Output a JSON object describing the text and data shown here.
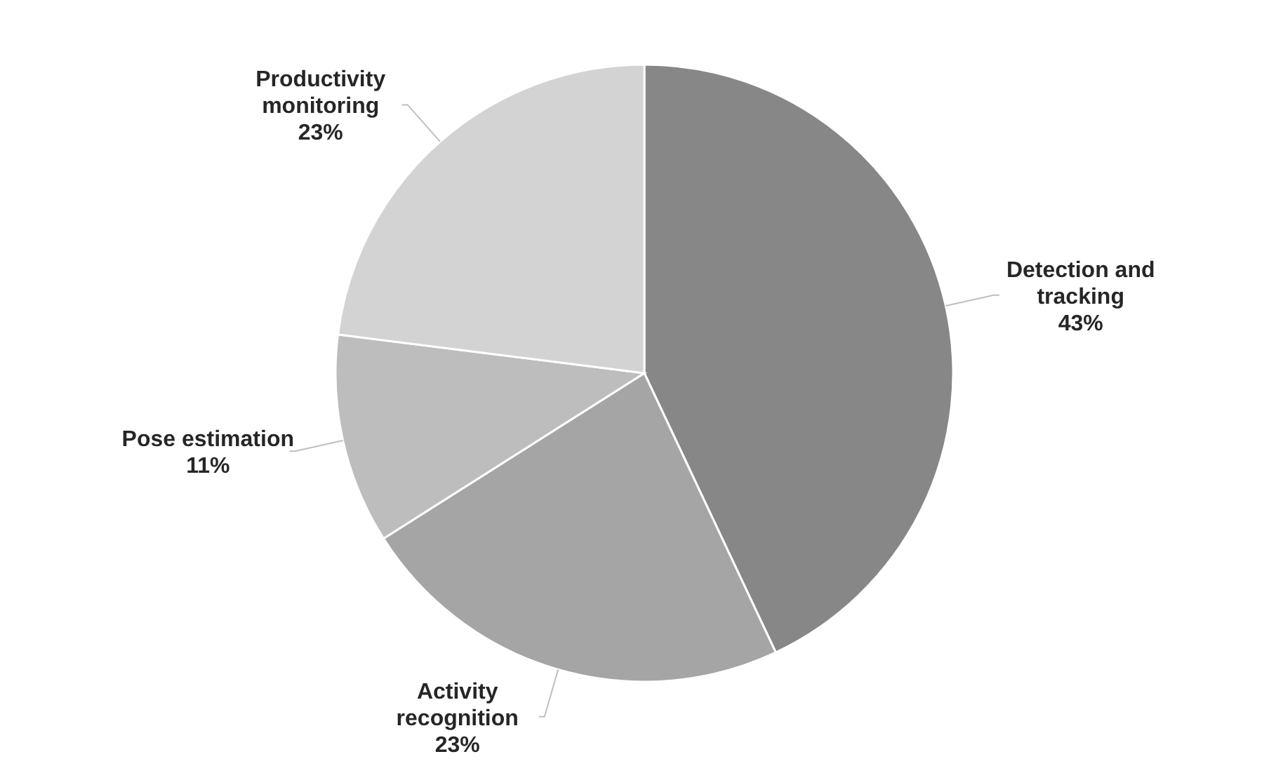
{
  "chart_data": {
    "type": "pie",
    "categories": [
      "Detection and tracking",
      "Activity recognition",
      "Pose estimation",
      "Productivity monitoring"
    ],
    "values": [
      43,
      23,
      11,
      23
    ],
    "colors": [
      "#878787",
      "#a5a5a5",
      "#bdbdbd",
      "#d3d3d3"
    ],
    "value_labels": [
      "43%",
      "23%",
      "11%",
      "23%"
    ]
  }
}
